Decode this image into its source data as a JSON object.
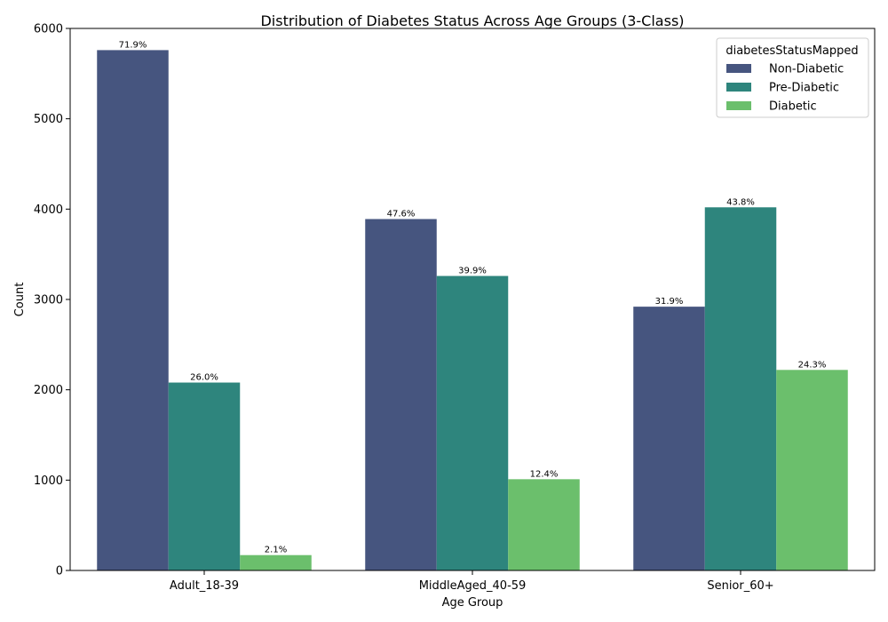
{
  "chart_data": {
    "type": "bar",
    "title": "Distribution of Diabetes Status Across Age Groups (3-Class)",
    "xlabel": "Age Group",
    "ylabel": "Count",
    "ylim": [
      0,
      6000
    ],
    "yticks": [
      0,
      1000,
      2000,
      3000,
      4000,
      5000,
      6000
    ],
    "categories": [
      "Adult_18-39",
      "MiddleAged_40-59",
      "Senior_60+"
    ],
    "series": [
      {
        "name": "Non-Diabetic",
        "color": "#46557f",
        "values": [
          5760,
          3890,
          2920
        ],
        "labels": [
          "71.9%",
          "47.6%",
          "31.9%"
        ]
      },
      {
        "name": "Pre-Diabetic",
        "color": "#2e857d",
        "values": [
          2080,
          3260,
          4020
        ],
        "labels": [
          "26.0%",
          "39.9%",
          "43.8%"
        ]
      },
      {
        "name": "Diabetic",
        "color": "#6bbf6c",
        "values": [
          170,
          1010,
          2220
        ],
        "labels": [
          "2.1%",
          "12.4%",
          "24.3%"
        ]
      }
    ],
    "legend": {
      "title": "diabetesStatusMapped",
      "placement": "top-right"
    },
    "grid": false
  }
}
